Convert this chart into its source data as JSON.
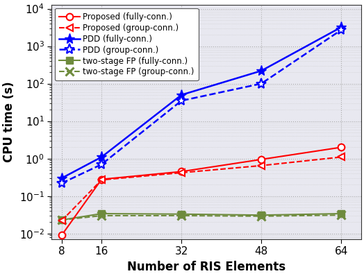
{
  "x": [
    8,
    16,
    32,
    48,
    64
  ],
  "proposed_full": [
    0.009,
    0.28,
    0.45,
    0.95,
    2.0
  ],
  "proposed_group": [
    0.022,
    0.27,
    0.42,
    0.65,
    1.1
  ],
  "pdd_full": [
    0.3,
    1.1,
    50.0,
    220.0,
    3200.0
  ],
  "pdd_group": [
    0.22,
    0.7,
    35.0,
    100.0,
    2700.0
  ],
  "twostage_full": [
    0.023,
    0.034,
    0.033,
    0.031,
    0.034
  ],
  "twostage_group": [
    0.023,
    0.03,
    0.03,
    0.029,
    0.031
  ],
  "xlabel": "Number of RIS Elements",
  "ylabel": "CPU time (s)",
  "xticks": [
    8,
    16,
    32,
    48,
    64
  ],
  "color_red": "#FF0000",
  "color_blue": "#0000FF",
  "color_green": "#6E8B3D",
  "bg_color": "#E8E8F0",
  "legend_labels": [
    "Proposed (fully-conn.)",
    "Proposed (group-conn.)",
    "PDD (fully-conn.)",
    "PDD (group-conn.)",
    "two-stage FP (fully-conn.)",
    "two-stage FP (group-conn.)"
  ],
  "figwidth": 5.24,
  "figheight": 3.98,
  "dpi": 100
}
